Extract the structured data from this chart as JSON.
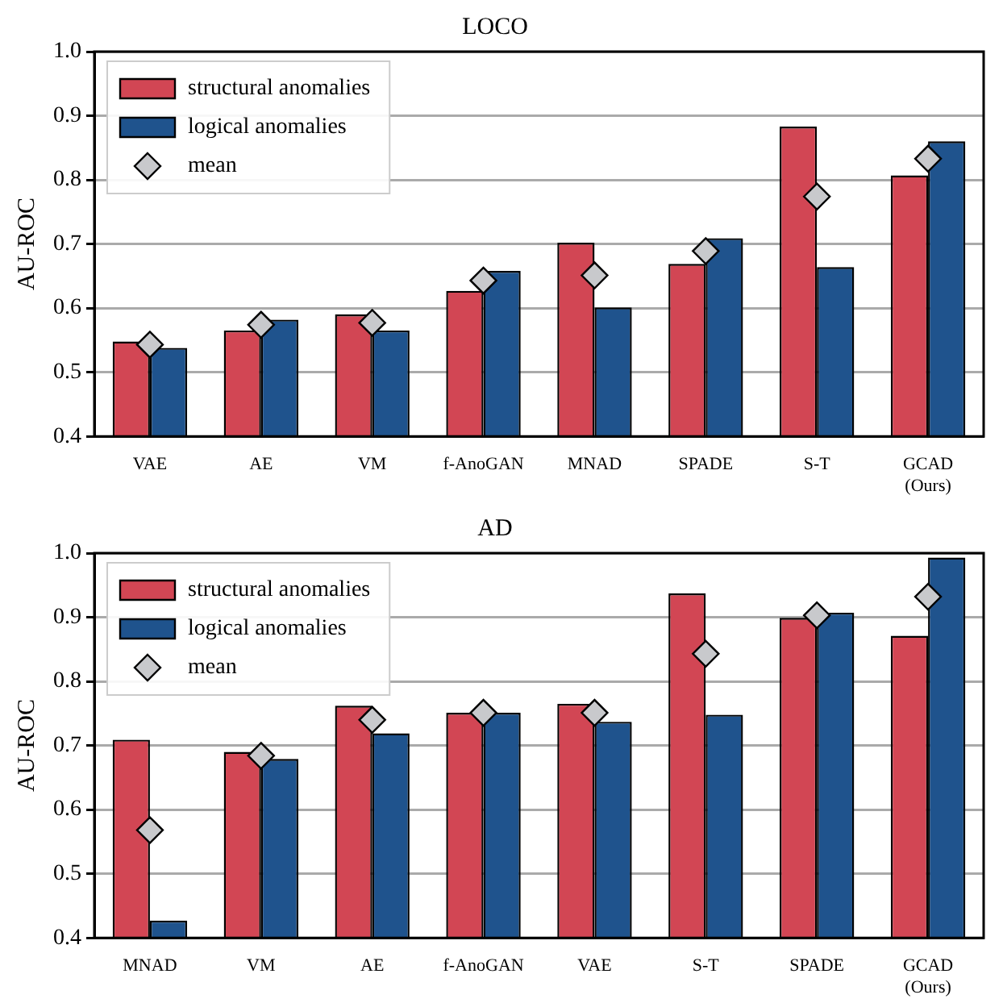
{
  "chart_data": [
    {
      "type": "bar",
      "title": "LOCO",
      "ylabel": "AU-ROC",
      "categories": [
        "VAE",
        "AE",
        "VM",
        "f-AnoGAN",
        "MNAD",
        "SPADE",
        "S-T",
        "GCAD\n(Ours)"
      ],
      "series": [
        {
          "name": "structural anomalies",
          "color": "#d24654",
          "values": [
            0.548,
            0.565,
            0.59,
            0.627,
            0.702,
            0.669,
            0.883,
            0.807
          ]
        },
        {
          "name": "logical anomalies",
          "color": "#1f538d",
          "values": [
            0.538,
            0.582,
            0.565,
            0.658,
            0.601,
            0.709,
            0.664,
            0.86
          ]
        },
        {
          "name": "mean",
          "type": "scatter",
          "marker": "diamond",
          "color": "#c8c9cc",
          "x": [
            "VAE",
            "AE",
            "VM",
            "f-AnoGAN",
            "MNAD",
            "SPADE",
            "S-T",
            "GCAD\n(Ours)"
          ],
          "values": [
            0.543,
            0.574,
            0.577,
            0.643,
            0.651,
            0.689,
            0.774,
            0.833
          ]
        }
      ],
      "ylim": [
        0.4,
        1.0
      ],
      "yticks": [
        0.4,
        0.5,
        0.6,
        0.7,
        0.8,
        0.9,
        {
          "value": 1,
          "label": "1.0"
        }
      ],
      "grid": "y",
      "legend": "top left"
    },
    {
      "type": "bar",
      "title": "AD",
      "ylabel": "AU-ROC",
      "categories": [
        "MNAD",
        "VM",
        "AE",
        "f-AnoGAN",
        "VAE",
        "S-T",
        "SPADE",
        "GCAD\n(Ours)"
      ],
      "series": [
        {
          "name": "structural anomalies",
          "color": "#d24654",
          "values": [
            0.709,
            0.69,
            0.762,
            0.751,
            0.765,
            0.937,
            0.899,
            0.871
          ]
        },
        {
          "name": "logical anomalies",
          "color": "#1f538d",
          "values": [
            0.427,
            0.679,
            0.719,
            0.751,
            0.737,
            0.748,
            0.907,
            0.993
          ]
        },
        {
          "name": "mean",
          "type": "scatter",
          "marker": "diamond",
          "color": "#c8c9cc",
          "x": [
            "MNAD",
            "VM",
            "AE",
            "f-AnoGAN",
            "VAE",
            "S-T",
            "SPADE",
            "GCAD\n(Ours)"
          ],
          "values": [
            0.568,
            0.684,
            0.74,
            0.751,
            0.751,
            0.843,
            0.903,
            0.932
          ]
        }
      ],
      "ylim": [
        0.4,
        1.0
      ],
      "yticks": [
        0.4,
        0.5,
        0.6,
        0.7,
        0.8,
        0.9,
        {
          "value": 1,
          "label": "1.0"
        }
      ],
      "grid": "y",
      "legend": "top left"
    }
  ]
}
